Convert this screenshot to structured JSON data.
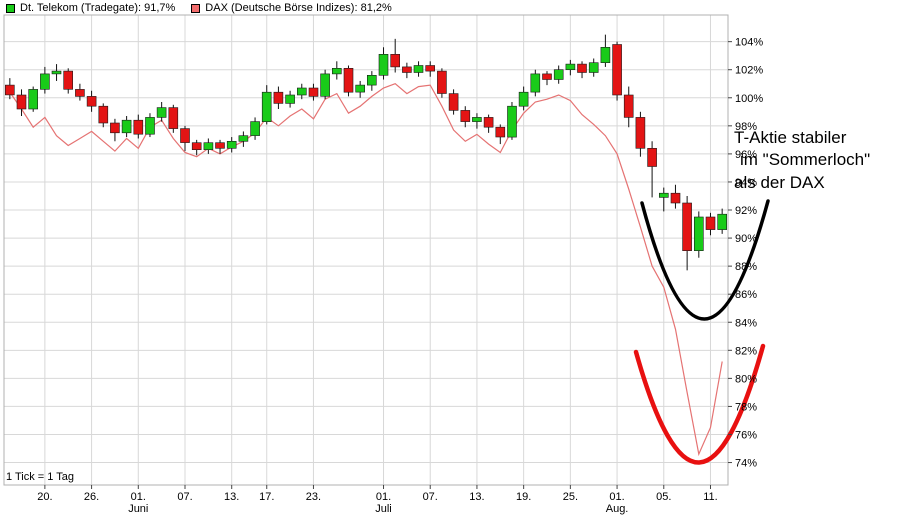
{
  "legend": {
    "items": [
      {
        "label": "Dt. Telekom (Tradegate): 91,7%",
        "color": "#19cb19"
      },
      {
        "label": "DAX (Deutsche Börse Indizes): 81,2%",
        "color": "#f26c6c"
      }
    ]
  },
  "footer": {
    "tick_note": "1 Tick = 1 Tag"
  },
  "annotation": {
    "lines": [
      "T-Aktie stabiler",
      "im \"Sommerloch\"",
      "als der DAX"
    ],
    "telekom_arc_color": "#000000",
    "dax_arc_color": "#e81010"
  },
  "chart_data": {
    "type": "candlestick",
    "title": "",
    "xlabel": "",
    "ylabel": "",
    "ylim": [
      72.4,
      105.9
    ],
    "y_tick_labels": [
      "104%",
      "102%",
      "100%",
      "98%",
      "96%",
      "94%",
      "92%",
      "90%",
      "88%",
      "86%",
      "84%",
      "82%",
      "80%",
      "78%",
      "76%",
      "74%"
    ],
    "x_ticks": [
      {
        "label": "20.",
        "i": 3
      },
      {
        "label": "26.",
        "i": 7
      },
      {
        "label": "01.",
        "i": 11
      },
      {
        "label": "07.",
        "i": 15
      },
      {
        "label": "13.",
        "i": 19
      },
      {
        "label": "17.",
        "i": 22
      },
      {
        "label": "23.",
        "i": 26
      },
      {
        "label": "01.",
        "i": 32
      },
      {
        "label": "07.",
        "i": 36
      },
      {
        "label": "13.",
        "i": 40
      },
      {
        "label": "19.",
        "i": 44
      },
      {
        "label": "25.",
        "i": 48
      },
      {
        "label": "01.",
        "i": 52
      },
      {
        "label": "05.",
        "i": 56
      },
      {
        "label": "11.",
        "i": 60
      }
    ],
    "month_labels": [
      {
        "label": "Juni",
        "i": 11
      },
      {
        "label": "Juli",
        "i": 32
      },
      {
        "label": "Aug.",
        "i": 52
      }
    ],
    "series": [
      {
        "name": "Dt. Telekom (Tradegate)",
        "type": "candlestick",
        "last_value_pct": 91.7,
        "ohlc": [
          [
            100.9,
            101.4,
            99.9,
            100.2
          ],
          [
            100.2,
            100.6,
            98.7,
            99.2
          ],
          [
            99.2,
            100.8,
            99.0,
            100.6
          ],
          [
            100.6,
            102.2,
            100.3,
            101.7
          ],
          [
            101.7,
            102.4,
            101.2,
            101.9
          ],
          [
            101.9,
            102.1,
            100.3,
            100.6
          ],
          [
            100.6,
            101.0,
            99.8,
            100.1
          ],
          [
            100.1,
            100.5,
            99.0,
            99.4
          ],
          [
            99.4,
            99.6,
            97.9,
            98.2
          ],
          [
            98.2,
            98.5,
            96.9,
            97.5
          ],
          [
            97.5,
            98.7,
            97.2,
            98.4
          ],
          [
            98.4,
            98.8,
            97.1,
            97.4
          ],
          [
            97.4,
            98.9,
            97.2,
            98.6
          ],
          [
            98.6,
            99.7,
            98.3,
            99.3
          ],
          [
            99.3,
            99.5,
            97.5,
            97.8
          ],
          [
            97.8,
            98.0,
            96.2,
            96.8
          ],
          [
            96.8,
            97.0,
            95.9,
            96.3
          ],
          [
            96.3,
            97.1,
            96.0,
            96.8
          ],
          [
            96.8,
            97.0,
            96.0,
            96.4
          ],
          [
            96.4,
            97.2,
            96.1,
            96.9
          ],
          [
            96.9,
            97.6,
            96.5,
            97.3
          ],
          [
            97.3,
            98.6,
            97.0,
            98.3
          ],
          [
            98.3,
            100.9,
            98.1,
            100.4
          ],
          [
            100.4,
            100.8,
            99.2,
            99.6
          ],
          [
            99.6,
            100.5,
            99.3,
            100.2
          ],
          [
            100.2,
            101.0,
            99.9,
            100.7
          ],
          [
            100.7,
            101.0,
            99.8,
            100.1
          ],
          [
            100.1,
            102.0,
            99.9,
            101.7
          ],
          [
            101.7,
            102.6,
            101.3,
            102.1
          ],
          [
            102.1,
            102.3,
            100.1,
            100.4
          ],
          [
            100.4,
            101.2,
            100.0,
            100.9
          ],
          [
            100.9,
            101.9,
            100.5,
            101.6
          ],
          [
            101.6,
            103.6,
            101.3,
            103.1
          ],
          [
            103.1,
            104.2,
            101.8,
            102.2
          ],
          [
            102.2,
            102.5,
            101.4,
            101.8
          ],
          [
            101.8,
            102.6,
            101.5,
            102.3
          ],
          [
            102.3,
            102.6,
            101.5,
            101.9
          ],
          [
            101.9,
            102.1,
            100.0,
            100.3
          ],
          [
            100.3,
            100.6,
            98.8,
            99.1
          ],
          [
            99.1,
            99.4,
            97.9,
            98.3
          ],
          [
            98.3,
            98.9,
            97.8,
            98.6
          ],
          [
            98.6,
            98.8,
            97.5,
            97.9
          ],
          [
            97.9,
            98.1,
            96.7,
            97.2
          ],
          [
            97.2,
            99.7,
            97.0,
            99.4
          ],
          [
            99.4,
            100.8,
            99.1,
            100.4
          ],
          [
            100.4,
            102.0,
            100.1,
            101.7
          ],
          [
            101.7,
            101.9,
            100.9,
            101.3
          ],
          [
            101.3,
            102.3,
            101.0,
            102.0
          ],
          [
            102.0,
            102.7,
            101.6,
            102.4
          ],
          [
            102.4,
            102.6,
            101.4,
            101.8
          ],
          [
            101.8,
            102.8,
            101.5,
            102.5
          ],
          [
            102.5,
            104.5,
            102.2,
            103.6
          ],
          [
            103.8,
            104.0,
            99.8,
            100.2
          ],
          [
            100.2,
            100.8,
            97.9,
            98.6
          ],
          [
            98.6,
            99.0,
            95.8,
            96.4
          ],
          [
            96.4,
            96.9,
            92.9,
            95.1
          ],
          [
            92.9,
            93.6,
            91.9,
            93.2
          ],
          [
            93.2,
            93.8,
            92.1,
            92.5
          ],
          [
            92.5,
            93.0,
            87.7,
            89.1
          ],
          [
            89.1,
            91.9,
            88.6,
            91.5
          ],
          [
            91.5,
            91.8,
            90.2,
            90.6
          ],
          [
            90.6,
            92.1,
            90.3,
            91.7
          ]
        ]
      },
      {
        "name": "DAX (Deutsche Börse Indizes)",
        "type": "line",
        "last_value_pct": 81.2,
        "values": [
          100.4,
          99.2,
          97.9,
          98.6,
          97.3,
          96.6,
          97.1,
          97.6,
          96.9,
          96.2,
          97.1,
          96.4,
          97.9,
          98.4,
          97.1,
          96.1,
          95.8,
          96.4,
          96.0,
          96.5,
          96.9,
          97.5,
          98.6,
          98.0,
          98.7,
          99.2,
          98.5,
          99.9,
          100.3,
          98.9,
          99.4,
          100.1,
          100.7,
          101.0,
          100.3,
          100.8,
          100.9,
          99.4,
          97.7,
          96.9,
          97.4,
          96.7,
          96.1,
          97.7,
          98.9,
          99.7,
          99.9,
          100.2,
          99.8,
          98.8,
          98.1,
          97.3,
          96.0,
          93.5,
          90.8,
          88.0,
          86.5,
          83.5,
          79.0,
          74.6,
          76.5,
          81.2
        ]
      }
    ],
    "colors": {
      "up": "#19cb19",
      "down": "#e31414",
      "wick": "#111111",
      "dax_line": "#e57373",
      "grid": "#d8d8d8",
      "frame": "#b0b0b0",
      "tick": "#444444",
      "label": "#000000"
    }
  }
}
